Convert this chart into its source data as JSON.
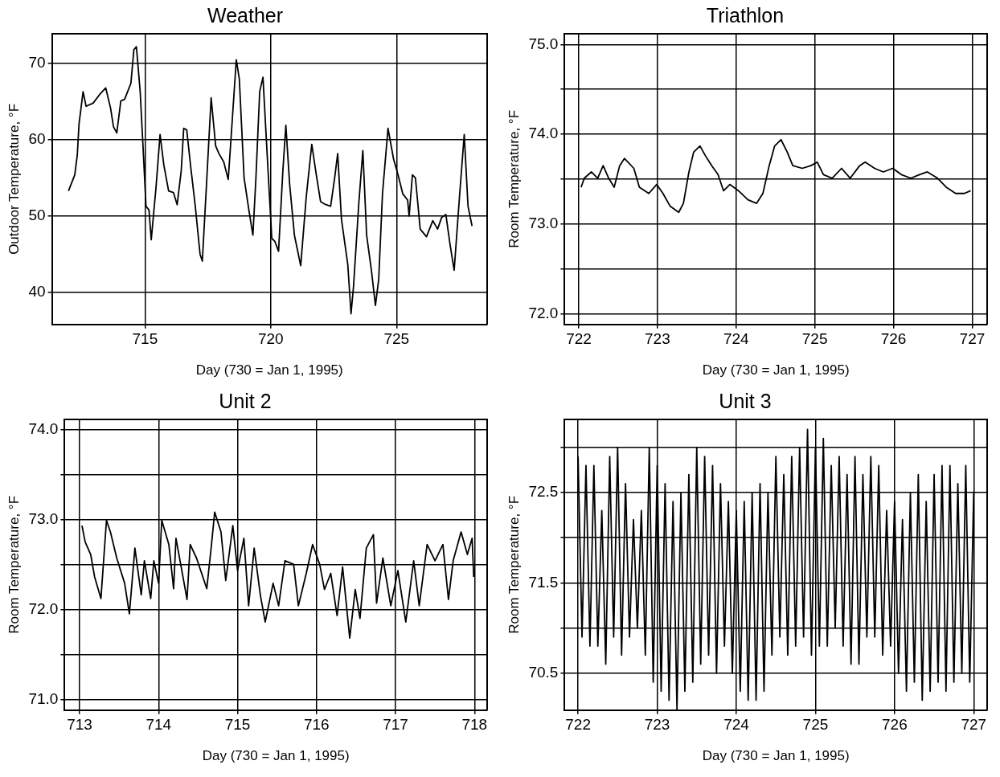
{
  "chart_data": [
    {
      "type": "line",
      "title": "Weather",
      "xlabel": "Day (730 = Jan 1, 1995)",
      "ylabel": "Outdoor Temperature, °F",
      "color": "#000000",
      "grid": true,
      "xlim": [
        711.3,
        728.6
      ],
      "xticks": [
        715,
        720,
        725
      ],
      "ylim": [
        35.8,
        73.9
      ],
      "yticks": [
        40,
        50,
        60,
        70
      ],
      "x": [
        711.96,
        712.21,
        712.31,
        712.38,
        712.54,
        712.66,
        712.94,
        713.19,
        713.44,
        713.63,
        713.75,
        713.88,
        714.04,
        714.19,
        714.31,
        714.44,
        714.56,
        714.66,
        714.81,
        714.94,
        715.04,
        715.16,
        715.25,
        715.44,
        715.6,
        715.75,
        715.94,
        716.13,
        716.28,
        716.44,
        716.54,
        716.66,
        716.81,
        717.0,
        717.19,
        717.28,
        717.44,
        717.63,
        717.81,
        717.94,
        718.13,
        718.31,
        718.46,
        718.63,
        718.75,
        718.94,
        719.13,
        719.29,
        719.41,
        719.56,
        719.69,
        719.88,
        720.04,
        720.16,
        720.31,
        720.48,
        720.6,
        720.75,
        720.94,
        721.19,
        721.41,
        721.63,
        721.81,
        721.98,
        722.19,
        722.38,
        722.54,
        722.66,
        722.81,
        723.06,
        723.19,
        723.29,
        723.5,
        723.66,
        723.81,
        724.0,
        724.16,
        724.29,
        724.44,
        724.66,
        724.88,
        725.06,
        725.25,
        725.44,
        725.5,
        725.63,
        725.75,
        725.94,
        726.19,
        726.44,
        726.63,
        726.79,
        726.96,
        727.13,
        727.29,
        727.5,
        727.69,
        727.84,
        728.0
      ],
      "values": [
        53.3,
        55.4,
        58,
        62.1,
        66.3,
        64.4,
        64.8,
        65.9,
        66.8,
        64.2,
        61.7,
        60.9,
        65.1,
        65.3,
        66.3,
        67.4,
        71.8,
        72.2,
        66.3,
        58,
        51.3,
        50.8,
        46.9,
        53.8,
        60.7,
        56.7,
        53.3,
        53.1,
        51.5,
        55.9,
        61.5,
        61.3,
        56.7,
        51.3,
        45,
        44.1,
        53.8,
        65.5,
        59.2,
        58.2,
        57.1,
        54.8,
        62.1,
        70.5,
        68,
        55,
        50.8,
        47.5,
        55,
        66.3,
        68.2,
        56.7,
        47.1,
        46.7,
        45.4,
        55.9,
        61.9,
        54.2,
        47.5,
        43.5,
        52.5,
        59.4,
        55.4,
        51.9,
        51.5,
        51.3,
        55,
        58.2,
        49.6,
        43.7,
        37.2,
        40.8,
        51.7,
        58.6,
        47.5,
        42.9,
        38.3,
        41.7,
        52.9,
        61.5,
        57.5,
        55.4,
        52.9,
        52.1,
        50,
        55.4,
        55,
        48.3,
        47.3,
        49.4,
        48.3,
        49.8,
        50.2,
        46.2,
        42.9,
        52.5,
        60.7,
        51.3,
        48.7
      ]
    },
    {
      "type": "line",
      "title": "Triathlon",
      "xlabel": "Day (730 = Jan 1, 1995)",
      "ylabel": "Room Temperature, °F",
      "color": "#000000",
      "grid": true,
      "xlim": [
        721.82,
        727.19
      ],
      "xticks": [
        722,
        723,
        724,
        725,
        726,
        727
      ],
      "ylim": [
        71.88,
        75.12
      ],
      "yticks": [
        {
          "value": 72,
          "label": "72.0"
        },
        {
          "value": 72.5,
          "label": null
        },
        {
          "value": 73,
          "label": "73.0"
        },
        {
          "value": 73.5,
          "label": null
        },
        {
          "value": 74,
          "label": "74.0"
        },
        {
          "value": 74.5,
          "label": null
        },
        {
          "value": 75,
          "label": "75.0"
        }
      ],
      "x": [
        722.03,
        722.07,
        722.16,
        722.24,
        722.31,
        722.38,
        722.45,
        722.52,
        722.58,
        722.7,
        722.77,
        722.89,
        722.99,
        723.07,
        723.16,
        723.27,
        723.33,
        723.4,
        723.46,
        723.54,
        723.61,
        723.69,
        723.77,
        723.84,
        723.92,
        724.03,
        724.15,
        724.26,
        724.34,
        724.42,
        724.49,
        724.57,
        724.65,
        724.72,
        724.84,
        724.95,
        725.03,
        725.11,
        725.22,
        725.34,
        725.45,
        725.57,
        725.64,
        725.76,
        725.87,
        725.99,
        726.1,
        726.22,
        726.33,
        726.43,
        726.56,
        726.67,
        726.79,
        726.9,
        726.98
      ],
      "values": [
        73.41,
        73.51,
        73.58,
        73.51,
        73.65,
        73.51,
        73.41,
        73.65,
        73.73,
        73.62,
        73.41,
        73.34,
        73.44,
        73.34,
        73.2,
        73.13,
        73.23,
        73.58,
        73.8,
        73.87,
        73.76,
        73.65,
        73.55,
        73.37,
        73.44,
        73.37,
        73.27,
        73.23,
        73.34,
        73.65,
        73.87,
        73.94,
        73.8,
        73.65,
        73.62,
        73.65,
        73.69,
        73.55,
        73.51,
        73.62,
        73.51,
        73.65,
        73.69,
        73.62,
        73.58,
        73.62,
        73.55,
        73.51,
        73.55,
        73.58,
        73.51,
        73.41,
        73.34,
        73.34,
        73.37
      ]
    },
    {
      "type": "line",
      "title": "Unit 2",
      "xlabel": "Day (730 = Jan 1, 1995)",
      "ylabel": "Room Temperature, °F",
      "color": "#000000",
      "grid": true,
      "xlim": [
        712.81,
        718.16
      ],
      "xticks": [
        713,
        714,
        715,
        716,
        717,
        718
      ],
      "ylim": [
        70.88,
        74.11
      ],
      "yticks": [
        {
          "value": 71,
          "label": "71.0"
        },
        {
          "value": 71.5,
          "label": null
        },
        {
          "value": 72,
          "label": "72.0"
        },
        {
          "value": 72.5,
          "label": null
        },
        {
          "value": 73,
          "label": "73.0"
        },
        {
          "value": 73.5,
          "label": null
        },
        {
          "value": 74,
          "label": "74.0"
        }
      ],
      "x": [
        713.03,
        713.07,
        713.14,
        713.19,
        713.27,
        713.34,
        713.39,
        713.47,
        713.57,
        713.63,
        713.7,
        713.78,
        713.82,
        713.9,
        713.94,
        714.0,
        714.04,
        714.13,
        714.19,
        714.22,
        714.28,
        714.36,
        714.4,
        714.48,
        714.61,
        714.67,
        714.71,
        714.79,
        714.85,
        714.94,
        715.0,
        715.08,
        715.14,
        715.21,
        715.29,
        715.35,
        715.45,
        715.52,
        715.6,
        715.71,
        715.77,
        715.87,
        715.95,
        716.04,
        716.1,
        716.18,
        716.26,
        716.33,
        716.42,
        716.49,
        716.55,
        716.63,
        716.72,
        716.76,
        716.84,
        716.94,
        717.03,
        717.13,
        717.23,
        717.3,
        717.4,
        717.5,
        717.6,
        717.67,
        717.73,
        717.83,
        717.91,
        717.97,
        717.99
      ],
      "values": [
        72.93,
        72.75,
        72.61,
        72.36,
        72.12,
        72.99,
        72.86,
        72.57,
        72.29,
        71.95,
        72.68,
        72.16,
        72.54,
        72.12,
        72.54,
        72.29,
        72.99,
        72.72,
        72.23,
        72.79,
        72.5,
        72.11,
        72.72,
        72.57,
        72.23,
        72.72,
        73.08,
        72.86,
        72.32,
        72.93,
        72.43,
        72.79,
        72.04,
        72.68,
        72.15,
        71.86,
        72.29,
        72.04,
        72.54,
        72.5,
        72.04,
        72.4,
        72.72,
        72.5,
        72.22,
        72.4,
        71.93,
        72.47,
        71.68,
        72.22,
        71.9,
        72.68,
        72.83,
        72.07,
        72.57,
        72.04,
        72.43,
        71.86,
        72.54,
        72.04,
        72.72,
        72.54,
        72.72,
        72.11,
        72.54,
        72.86,
        72.61,
        72.79,
        72.36
      ]
    },
    {
      "type": "line",
      "title": "Unit 3",
      "xlabel": "Day (730 = Jan 1, 1995)",
      "ylabel": "Room Temperature, °F",
      "color": "#000000",
      "grid": true,
      "xlim": [
        721.83,
        727.17
      ],
      "xticks": [
        722,
        723,
        724,
        725,
        726,
        727
      ],
      "ylim": [
        70.09,
        73.31
      ],
      "yticks": [
        70.5,
        {
          "value": 71,
          "label": null
        },
        71.5,
        {
          "value": 72,
          "label": null
        },
        72.5,
        {
          "value": 73,
          "label": null
        }
      ],
      "x": [
        722.0,
        722.05,
        722.1,
        722.15,
        722.2,
        722.25,
        722.3,
        722.35,
        722.4,
        722.45,
        722.5,
        722.55,
        722.6,
        722.65,
        722.7,
        722.75,
        722.8,
        722.85,
        722.9,
        722.95,
        723.0,
        723.05,
        723.1,
        723.15,
        723.2,
        723.25,
        723.3,
        723.35,
        723.4,
        723.45,
        723.5,
        723.55,
        723.6,
        723.65,
        723.7,
        723.75,
        723.8,
        723.85,
        723.9,
        723.95,
        724.0,
        724.05,
        724.1,
        724.15,
        724.2,
        724.25,
        724.3,
        724.35,
        724.4,
        724.45,
        724.5,
        724.55,
        724.6,
        724.65,
        724.7,
        724.75,
        724.8,
        724.85,
        724.9,
        724.95,
        725.0,
        725.05,
        725.1,
        725.15,
        725.2,
        725.25,
        725.3,
        725.35,
        725.4,
        725.45,
        725.5,
        725.55,
        725.6,
        725.65,
        725.7,
        725.75,
        725.8,
        725.85,
        725.9,
        725.95,
        726.0,
        726.05,
        726.1,
        726.15,
        726.2,
        726.25,
        726.3,
        726.35,
        726.4,
        726.45,
        726.5,
        726.55,
        726.6,
        726.65,
        726.7,
        726.75,
        726.8,
        726.85,
        726.9,
        726.95,
        727.0
      ],
      "values": [
        72.9,
        70.9,
        72.8,
        70.8,
        72.8,
        70.8,
        72.3,
        70.6,
        72.9,
        70.9,
        73.0,
        70.7,
        72.6,
        70.9,
        72.2,
        71.0,
        72.3,
        70.7,
        73.0,
        70.4,
        72.8,
        70.3,
        72.6,
        70.2,
        72.4,
        70.1,
        72.5,
        70.3,
        72.7,
        70.4,
        73.0,
        70.6,
        72.9,
        70.7,
        72.8,
        70.5,
        72.6,
        70.8,
        72.4,
        70.5,
        72.3,
        70.3,
        72.4,
        70.2,
        72.5,
        70.2,
        72.6,
        70.3,
        72.5,
        70.7,
        72.9,
        70.9,
        72.7,
        70.7,
        72.9,
        70.8,
        73.0,
        70.9,
        73.2,
        70.7,
        73.0,
        70.8,
        73.1,
        70.8,
        72.8,
        71.0,
        72.9,
        70.8,
        72.7,
        70.6,
        72.9,
        70.6,
        72.7,
        70.9,
        72.9,
        70.9,
        72.8,
        70.7,
        72.3,
        70.8,
        72.4,
        70.5,
        72.2,
        70.3,
        72.5,
        70.4,
        72.7,
        70.2,
        72.4,
        70.3,
        72.7,
        70.4,
        72.8,
        70.3,
        72.8,
        70.4,
        72.6,
        70.5,
        72.8,
        70.4,
        72.5
      ]
    }
  ]
}
